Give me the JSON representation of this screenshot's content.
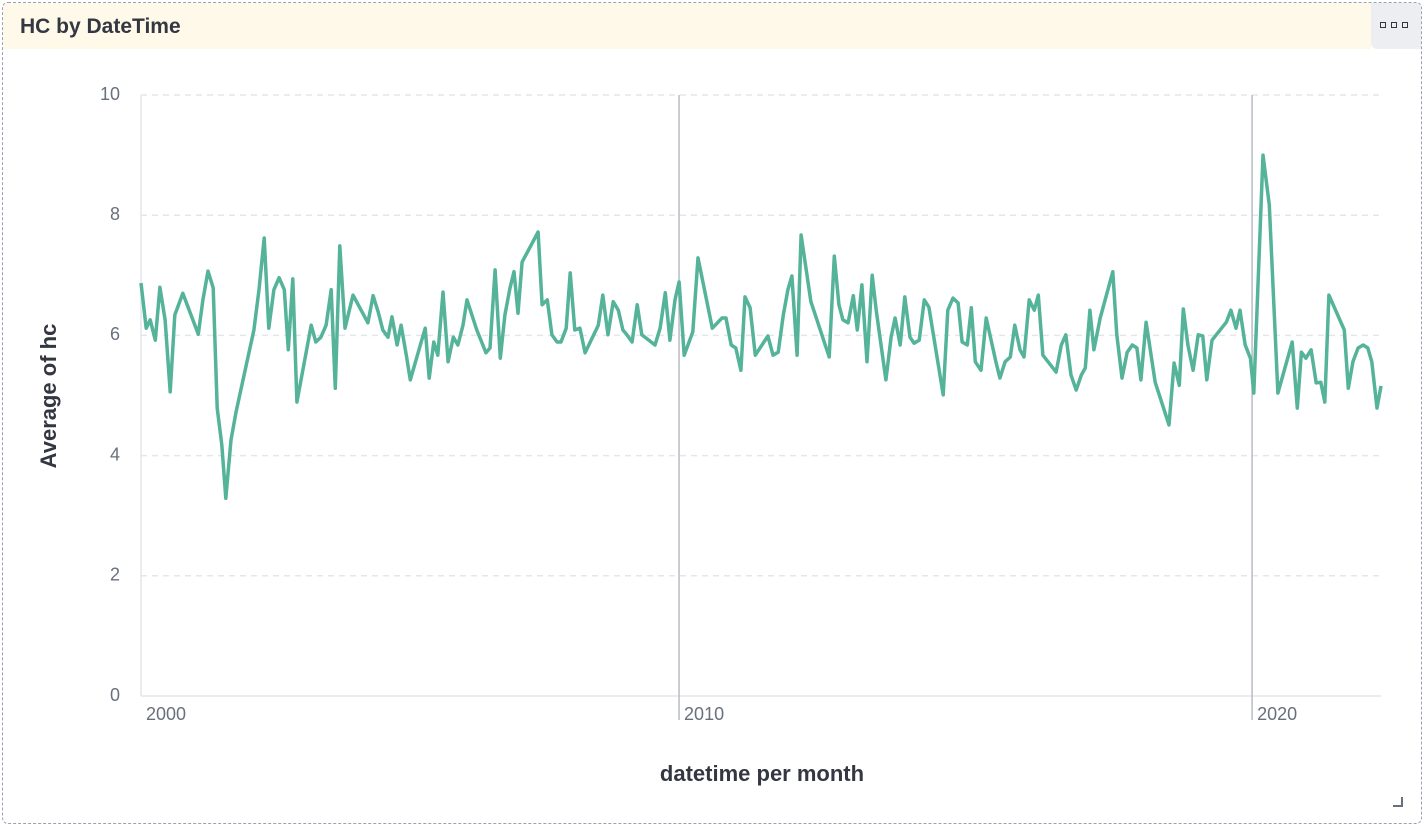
{
  "panel": {
    "title": "HC by DateTime"
  },
  "chart_data": {
    "type": "line",
    "xlabel": "datetime per month",
    "ylabel": "Average of hc",
    "color": "#54b399",
    "grid": true,
    "xlim": [
      2000.61,
      2022.25
    ],
    "xticks": [
      2000,
      2010,
      2020
    ],
    "ylim": [
      0,
      10
    ],
    "yticks": [
      0,
      2,
      4,
      6,
      8,
      10
    ],
    "x": [
      2000.61,
      2000.7,
      2000.77,
      2000.86,
      2000.94,
      2001.03,
      2001.12,
      2001.2,
      2001.34,
      2001.61,
      2001.69,
      2001.78,
      2001.87,
      2001.94,
      2002.02,
      2002.09,
      2002.18,
      2002.27,
      2002.58,
      2002.67,
      2002.76,
      2002.84,
      2002.93,
      2003.02,
      2003.11,
      2003.18,
      2003.26,
      2003.33,
      2003.58,
      2003.66,
      2003.75,
      2003.84,
      2003.93,
      2004.0,
      2004.08,
      2004.17,
      2004.31,
      2004.57,
      2004.66,
      2004.75,
      2004.83,
      2004.92,
      2004.99,
      2005.08,
      2005.15,
      2005.24,
      2005.31,
      2005.57,
      2005.64,
      2005.72,
      2005.79,
      2005.88,
      2005.97,
      2006.06,
      2006.14,
      2006.23,
      2006.3,
      2006.47,
      2006.63,
      2006.7,
      2006.79,
      2006.88,
      2006.96,
      2007.05,
      2007.12,
      2007.19,
      2007.26,
      2007.54,
      2007.61,
      2007.7,
      2007.78,
      2007.87,
      2007.94,
      2008.03,
      2008.1,
      2008.18,
      2008.27,
      2008.36,
      2008.59,
      2008.67,
      2008.76,
      2008.85,
      2008.94,
      2009.02,
      2009.09,
      2009.18,
      2009.27,
      2009.35,
      2009.58,
      2009.67,
      2009.76,
      2009.84,
      2009.93,
      2010.0,
      2010.09,
      2010.24,
      2010.33,
      2010.58,
      2010.75,
      2010.82,
      2010.91,
      2010.99,
      2011.08,
      2011.15,
      2011.24,
      2011.33,
      2011.55,
      2011.64,
      2011.73,
      2011.82,
      2011.9,
      2011.97,
      2012.06,
      2012.13,
      2012.3,
      2012.62,
      2012.71,
      2012.79,
      2012.86,
      2012.95,
      2013.04,
      2013.11,
      2013.19,
      2013.28,
      2013.37,
      2013.44,
      2013.61,
      2013.7,
      2013.77,
      2013.86,
      2013.94,
      2014.03,
      2014.1,
      2014.19,
      2014.28,
      2014.36,
      2014.61,
      2014.69,
      2014.78,
      2014.87,
      2014.94,
      2015.03,
      2015.1,
      2015.17,
      2015.27,
      2015.36,
      2015.53,
      2015.6,
      2015.69,
      2015.78,
      2015.86,
      2015.95,
      2016.02,
      2016.11,
      2016.2,
      2016.27,
      2016.35,
      2016.58,
      2016.67,
      2016.75,
      2016.84,
      2016.93,
      2017.02,
      2017.09,
      2017.17,
      2017.24,
      2017.35,
      2017.57,
      2017.64,
      2017.73,
      2017.82,
      2017.91,
      2017.99,
      2018.06,
      2018.15,
      2018.31,
      2018.55,
      2018.64,
      2018.73,
      2018.8,
      2018.88,
      2018.97,
      2019.06,
      2019.14,
      2019.21,
      2019.3,
      2019.55,
      2019.63,
      2019.72,
      2019.79,
      2019.88,
      2019.97,
      2020.03,
      2020.19,
      2020.3,
      2020.45,
      2020.7,
      2020.79,
      2020.86,
      2020.94,
      2021.03,
      2021.12,
      2021.2,
      2021.27,
      2021.34,
      2021.61,
      2021.68,
      2021.76,
      2021.85,
      2021.94,
      2022.02,
      2022.09,
      2022.18,
      2022.25
    ],
    "values": [
      6.87,
      6.12,
      6.26,
      5.92,
      6.8,
      6.26,
      5.06,
      6.34,
      6.7,
      6.02,
      6.59,
      7.07,
      6.79,
      4.79,
      4.18,
      3.29,
      4.26,
      4.73,
      6.09,
      6.76,
      7.62,
      6.12,
      6.76,
      6.96,
      6.76,
      5.76,
      6.94,
      4.89,
      6.17,
      5.89,
      5.97,
      6.17,
      6.76,
      5.12,
      7.49,
      6.12,
      6.67,
      6.21,
      6.66,
      6.39,
      6.09,
      5.97,
      6.31,
      5.84,
      6.17,
      5.67,
      5.26,
      6.12,
      5.29,
      5.89,
      5.67,
      6.72,
      5.56,
      5.97,
      5.84,
      6.17,
      6.59,
      6.09,
      5.71,
      5.79,
      7.09,
      5.62,
      6.34,
      6.79,
      7.06,
      6.37,
      7.22,
      7.72,
      6.51,
      6.59,
      6.01,
      5.89,
      5.89,
      6.12,
      7.04,
      6.09,
      6.12,
      5.71,
      6.17,
      6.67,
      6.01,
      6.56,
      6.42,
      6.09,
      6.01,
      5.89,
      6.51,
      6.01,
      5.84,
      6.12,
      6.71,
      5.92,
      6.59,
      6.89,
      5.67,
      6.06,
      7.29,
      6.12,
      6.29,
      6.29,
      5.84,
      5.79,
      5.42,
      6.64,
      6.46,
      5.67,
      5.99,
      5.67,
      5.72,
      6.34,
      6.76,
      6.99,
      5.67,
      7.67,
      6.56,
      5.64,
      7.32,
      6.51,
      6.26,
      6.21,
      6.66,
      6.09,
      6.84,
      5.56,
      7.0,
      6.42,
      5.26,
      5.97,
      6.29,
      5.84,
      6.64,
      5.97,
      5.87,
      5.92,
      6.59,
      6.47,
      5.01,
      6.42,
      6.62,
      6.54,
      5.89,
      5.84,
      6.46,
      5.56,
      5.42,
      6.29,
      5.56,
      5.29,
      5.56,
      5.64,
      6.17,
      5.76,
      5.64,
      6.59,
      6.42,
      6.67,
      5.67,
      5.39,
      5.84,
      6.01,
      5.34,
      5.09,
      5.34,
      5.46,
      6.42,
      5.76,
      6.29,
      7.06,
      6.01,
      5.29,
      5.72,
      5.84,
      5.79,
      5.26,
      6.22,
      5.22,
      4.51,
      5.54,
      5.17,
      6.44,
      5.84,
      5.42,
      6.01,
      5.99,
      5.26,
      5.92,
      6.22,
      6.42,
      6.12,
      6.42,
      5.84,
      5.62,
      5.04,
      9.0,
      8.17,
      5.04,
      5.89,
      4.79,
      5.72,
      5.62,
      5.76,
      5.21,
      5.22,
      4.89,
      6.67,
      6.09,
      5.12,
      5.56,
      5.79,
      5.84,
      5.79,
      5.56,
      4.79,
      5.16
    ]
  }
}
